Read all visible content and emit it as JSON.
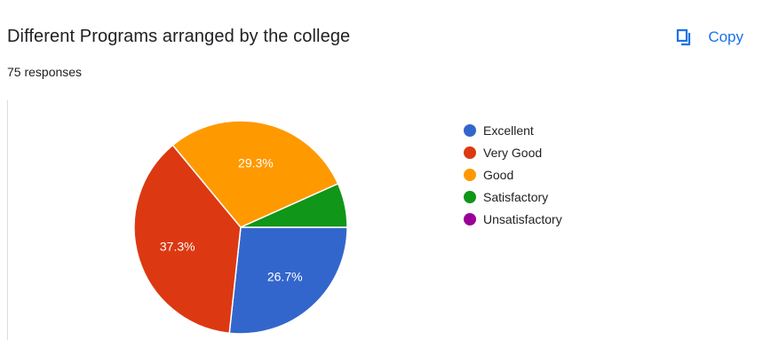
{
  "header": {
    "title": "Different Programs arranged by the college",
    "responses": "75 responses",
    "copy_label": "Copy",
    "copy_icon": "copy-icon",
    "accent_color": "#1a73e8"
  },
  "chart_data": {
    "type": "pie",
    "title": "Different Programs arranged by the college",
    "categories": [
      "Excellent",
      "Very Good",
      "Good",
      "Satisfactory",
      "Unsatisfactory"
    ],
    "values": [
      26.7,
      37.3,
      29.3,
      6.7,
      0
    ],
    "value_labels": [
      "26.7%",
      "37.3%",
      "29.3%",
      "",
      ""
    ],
    "colors": [
      "#3366cc",
      "#dc3912",
      "#ff9900",
      "#109618",
      "#990099"
    ],
    "legend_position": "right"
  }
}
